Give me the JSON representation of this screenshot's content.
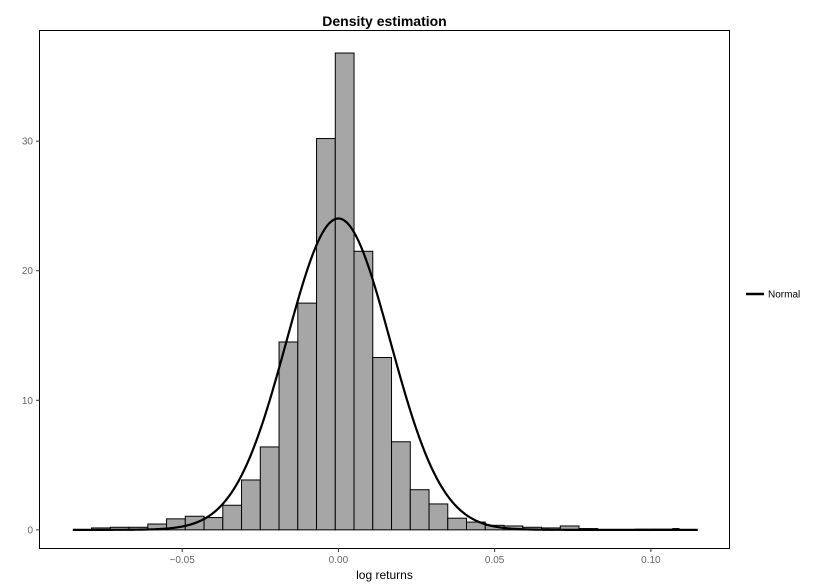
{
  "chart_data": {
    "type": "bar",
    "title": "Density estimation",
    "xlabel": "log returns",
    "ylabel": "",
    "xlim": [
      -0.0955,
      0.125
    ],
    "ylim": [
      -1.4,
      38.5
    ],
    "xticks": [
      -0.05,
      0.0,
      0.05,
      0.1
    ],
    "xtick_labels": [
      "−0.05",
      "0.00",
      "0.05",
      "0.10"
    ],
    "yticks": [
      0,
      10,
      20,
      30
    ],
    "ytick_labels": [
      "0",
      "10",
      "20",
      "30"
    ],
    "grid": false,
    "bin_width": 0.006,
    "bins": [
      {
        "x0": -0.079,
        "x1": -0.073,
        "density": 0.15
      },
      {
        "x0": -0.073,
        "x1": -0.067,
        "density": 0.2
      },
      {
        "x0": -0.067,
        "x1": -0.061,
        "density": 0.2
      },
      {
        "x0": -0.061,
        "x1": -0.055,
        "density": 0.45
      },
      {
        "x0": -0.055,
        "x1": -0.049,
        "density": 0.85
      },
      {
        "x0": -0.049,
        "x1": -0.043,
        "density": 1.05
      },
      {
        "x0": -0.043,
        "x1": -0.037,
        "density": 0.95
      },
      {
        "x0": -0.037,
        "x1": -0.031,
        "density": 1.9
      },
      {
        "x0": -0.031,
        "x1": -0.025,
        "density": 3.85
      },
      {
        "x0": -0.025,
        "x1": -0.019,
        "density": 6.4
      },
      {
        "x0": -0.019,
        "x1": -0.013,
        "density": 14.5
      },
      {
        "x0": -0.013,
        "x1": -0.007,
        "density": 17.5
      },
      {
        "x0": -0.007,
        "x1": -0.001,
        "density": 30.2
      },
      {
        "x0": -0.001,
        "x1": 0.005,
        "density": 36.8
      },
      {
        "x0": 0.005,
        "x1": 0.011,
        "density": 21.5
      },
      {
        "x0": 0.011,
        "x1": 0.017,
        "density": 13.3
      },
      {
        "x0": 0.017,
        "x1": 0.023,
        "density": 6.8
      },
      {
        "x0": 0.023,
        "x1": 0.029,
        "density": 3.1
      },
      {
        "x0": 0.029,
        "x1": 0.035,
        "density": 2.0
      },
      {
        "x0": 0.035,
        "x1": 0.041,
        "density": 0.9
      },
      {
        "x0": 0.041,
        "x1": 0.047,
        "density": 0.6
      },
      {
        "x0": 0.047,
        "x1": 0.053,
        "density": 0.35
      },
      {
        "x0": 0.053,
        "x1": 0.059,
        "density": 0.3
      },
      {
        "x0": 0.059,
        "x1": 0.065,
        "density": 0.2
      },
      {
        "x0": 0.065,
        "x1": 0.071,
        "density": 0.15
      },
      {
        "x0": 0.071,
        "x1": 0.077,
        "density": 0.3
      },
      {
        "x0": 0.077,
        "x1": 0.083,
        "density": 0.1
      },
      {
        "x0": 0.083,
        "x1": 0.089,
        "density": 0.0
      },
      {
        "x0": 0.089,
        "x1": 0.095,
        "density": 0.0
      },
      {
        "x0": 0.095,
        "x1": 0.101,
        "density": 0.05
      },
      {
        "x0": 0.101,
        "x1": 0.107,
        "density": 0.05
      },
      {
        "x0": 0.107,
        "x1": 0.109,
        "density": 0.1
      }
    ],
    "series": [
      {
        "name": "Normal",
        "type": "line",
        "mean": 0.0,
        "sd": 0.0166,
        "x_range": [
          -0.085,
          0.115
        ],
        "color": "#000000"
      }
    ],
    "legend": {
      "position": "right",
      "entries": [
        "Normal"
      ]
    },
    "colors": {
      "bar_fill": "#a6a6a6",
      "bar_stroke": "#000000",
      "curve": "#000000",
      "tick_text": "#666666"
    }
  }
}
